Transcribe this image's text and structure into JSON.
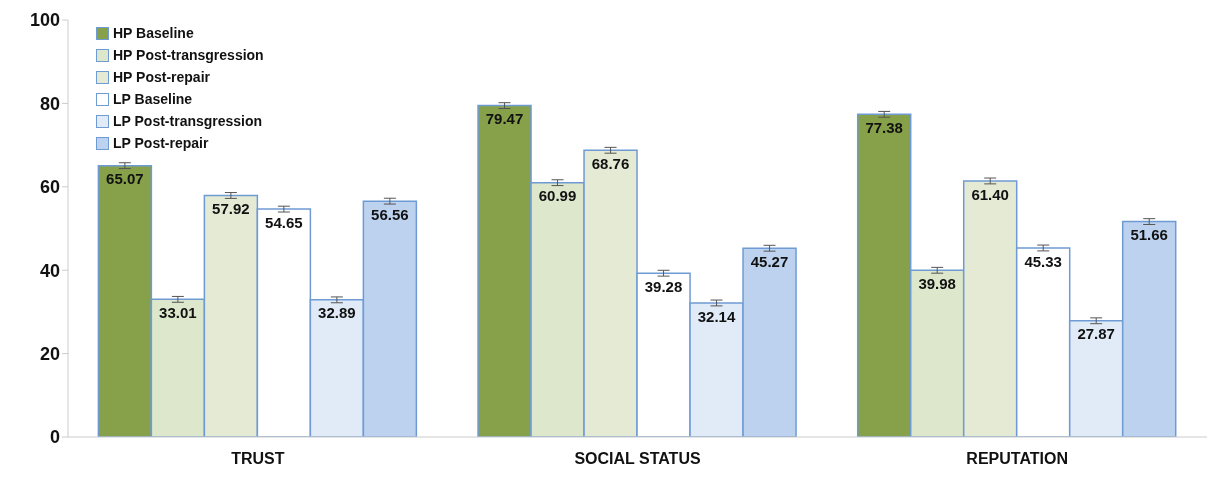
{
  "chart_data": {
    "type": "bar",
    "categories": [
      "TRUST",
      "SOCIAL STATUS",
      "REPUTATION"
    ],
    "series": [
      {
        "name": "HP Baseline",
        "color": "#87a04a",
        "values": [
          65.07,
          79.47,
          77.38
        ],
        "errors": [
          0.7,
          0.7,
          0.7
        ],
        "value_labels": [
          "65.07",
          "79.47",
          "77.38"
        ]
      },
      {
        "name": "HP Post-transgression",
        "color": "#dde7cc",
        "values": [
          33.01,
          60.99,
          39.98
        ],
        "errors": [
          0.7,
          0.7,
          0.7
        ],
        "value_labels": [
          "33.01",
          "60.99",
          "39.98"
        ]
      },
      {
        "name": "HP Post-repair",
        "color": "#e4ead4",
        "values": [
          57.92,
          68.76,
          61.4
        ],
        "errors": [
          0.7,
          0.7,
          0.7
        ],
        "value_labels": [
          "57.92",
          "68.76",
          "61.40"
        ]
      },
      {
        "name": "LP Baseline",
        "color": "#ffffff",
        "values": [
          54.65,
          39.28,
          45.33
        ],
        "errors": [
          0.7,
          0.7,
          0.7
        ],
        "value_labels": [
          "54.65",
          "39.28",
          "45.33"
        ]
      },
      {
        "name": "LP Post-transgression",
        "color": "#e1ebf8",
        "values": [
          32.89,
          32.14,
          27.87
        ],
        "errors": [
          0.7,
          0.7,
          0.7
        ],
        "value_labels": [
          "32.89",
          "32.14",
          "27.87"
        ]
      },
      {
        "name": "LP Post-repair",
        "color": "#bcd2ef",
        "values": [
          56.56,
          45.27,
          51.66
        ],
        "errors": [
          0.7,
          0.7,
          0.7
        ],
        "value_labels": [
          "56.56",
          "45.27",
          "51.66"
        ]
      }
    ],
    "ylim": [
      0,
      100
    ],
    "yticks": [
      0,
      20,
      40,
      60,
      80,
      100
    ],
    "legend": "top left"
  }
}
